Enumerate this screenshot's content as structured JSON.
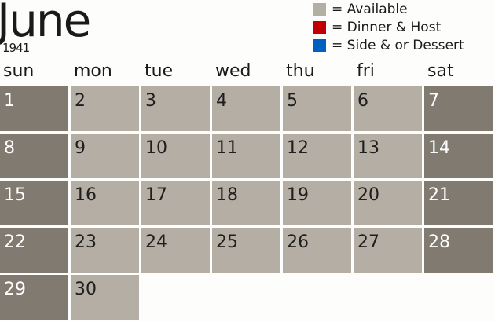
{
  "month": "June",
  "year": "1941",
  "legend": [
    {
      "label": "= Available",
      "color": "#b5aea5"
    },
    {
      "label": "= Dinner & Host",
      "color": "#c00000"
    },
    {
      "label": "= Side & or Dessert",
      "color": "#0060c0"
    }
  ],
  "days_of_week": [
    "sun",
    "mon",
    "tue",
    "wed",
    "thu",
    "fri",
    "sat"
  ],
  "days": [
    "1",
    "2",
    "3",
    "4",
    "5",
    "6",
    "7",
    "8",
    "9",
    "10",
    "11",
    "12",
    "13",
    "14",
    "15",
    "16",
    "17",
    "18",
    "19",
    "20",
    "21",
    "22",
    "23",
    "24",
    "25",
    "26",
    "27",
    "28",
    "29",
    "30"
  ],
  "colors": {
    "weekday": "#b5aea5",
    "weekend": "#807a71"
  }
}
